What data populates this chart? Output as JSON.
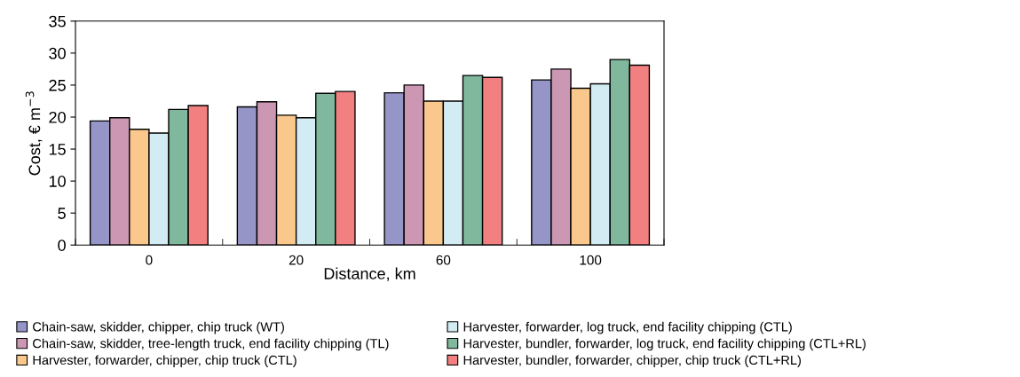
{
  "chart_data": {
    "type": "bar",
    "xlabel": "Distance, km",
    "ylabel": "Cost, € m$^{−3}$",
    "categories": [
      "0",
      "20",
      "60",
      "100"
    ],
    "series": [
      {
        "name": "Chain-saw, skidder, chipper, chip truck (WT)",
        "color": "#9595c8",
        "values": [
          19.4,
          21.6,
          23.8,
          25.8
        ]
      },
      {
        "name": "Chain-saw, skidder, tree-length truck, end facility chipping (TL)",
        "color": "#cc97b3",
        "values": [
          19.9,
          22.4,
          25.0,
          27.5
        ]
      },
      {
        "name": "Harvester, forwarder, chipper, chip truck (CTL)",
        "color": "#fac88c",
        "values": [
          18.1,
          20.3,
          22.5,
          24.5
        ]
      },
      {
        "name": "Harvester, forwarder, log truck, end facility chipping (CTL)",
        "color": "#d3ecf3",
        "values": [
          17.5,
          19.9,
          22.5,
          25.2
        ]
      },
      {
        "name": "Harvester, bundler, forwarder, log truck, end facility chipping (CTL+RL)",
        "color": "#80b89d",
        "values": [
          21.2,
          23.7,
          26.5,
          29.0
        ]
      },
      {
        "name": "Harvester, bundler, forwarder, chipper, chip truck (CTL+RL)",
        "color": "#f38080",
        "values": [
          21.8,
          24.0,
          26.2,
          28.1
        ]
      }
    ],
    "ylim": [
      0,
      35
    ],
    "yticks": [
      0,
      5,
      10,
      15,
      20,
      25,
      30,
      35
    ],
    "grid": false,
    "legend": "bottom"
  }
}
